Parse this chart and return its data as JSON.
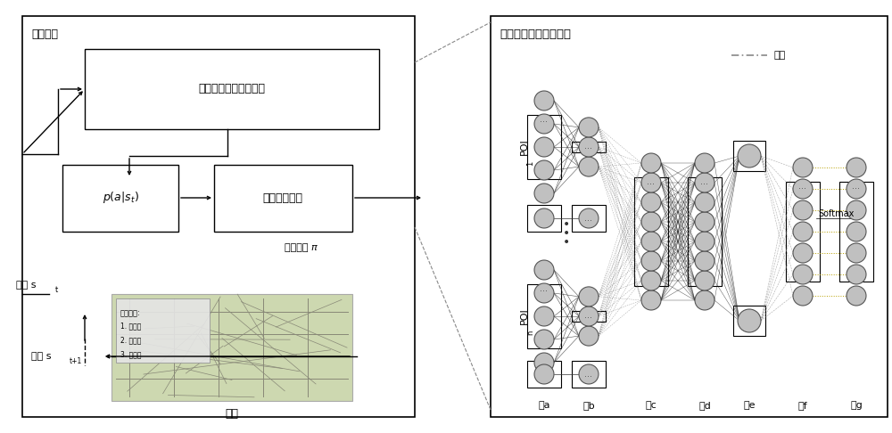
{
  "bg_color": "#ffffff",
  "left_label": "策略网络",
  "deep_left_label": "深度活动因素平衡网络",
  "p_label": "p(a|s_t)",
  "mc_label": "蒙特卡罗抽样",
  "right_label": "深度活动因素平衡网络",
  "sample_label": "采样策略 π",
  "state_t_label": "状态 s",
  "state_t_sub": "t",
  "state_t1_label": "状态 s",
  "state_t1_sub": "t+1",
  "env_label": "环境",
  "connect_label": "连接",
  "softmax_label": "Softmax",
  "layer_labels": [
    "层a",
    "层b",
    "层c",
    "层d",
    "层e",
    "层f",
    "层g"
  ],
  "poi1_label": "POI",
  "poi1_sub": "1",
  "poin_label": "POI",
  "poin_sub": "n",
  "demand_title": "需求列表:",
  "demand_items": [
    "1. 去医院",
    "2. 去公园",
    "3. 去购物"
  ],
  "node_fc": "#c0c0c0",
  "node_ec": "#555555",
  "line_color": "#222222",
  "dash_color": "#888888"
}
